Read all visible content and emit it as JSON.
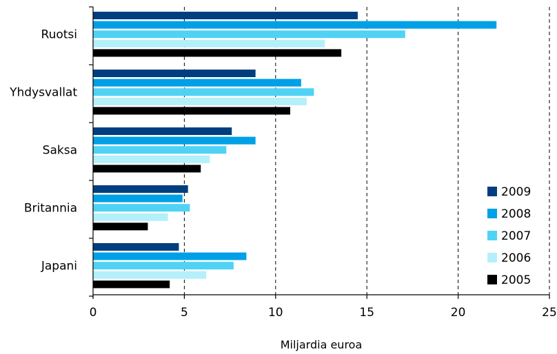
{
  "chart_data": {
    "type": "bar",
    "orientation": "horizontal",
    "categories": [
      "Ruotsi",
      "Yhdysvallat",
      "Saksa",
      "Britannia",
      "Japani"
    ],
    "series": [
      {
        "name": "2009",
        "color": "#003f7f",
        "values": [
          14.5,
          8.9,
          7.6,
          5.2,
          4.7
        ]
      },
      {
        "name": "2008",
        "color": "#00a0e6",
        "values": [
          22.1,
          11.4,
          8.9,
          4.9,
          8.4
        ]
      },
      {
        "name": "2007",
        "color": "#50d2f5",
        "values": [
          17.1,
          12.1,
          7.3,
          5.3,
          7.7
        ]
      },
      {
        "name": "2006",
        "color": "#b4f0fa",
        "values": [
          12.7,
          11.7,
          6.4,
          4.1,
          6.2
        ]
      },
      {
        "name": "2005",
        "color": "#000000",
        "values": [
          13.6,
          10.8,
          5.9,
          3.0,
          4.2
        ]
      }
    ],
    "xlabel": "Miljardia euroa",
    "xlim": [
      0,
      25
    ],
    "xticks": [
      0,
      5,
      10,
      15,
      20,
      25
    ],
    "grid": "vertical dashed",
    "legend": "bottom-right"
  }
}
